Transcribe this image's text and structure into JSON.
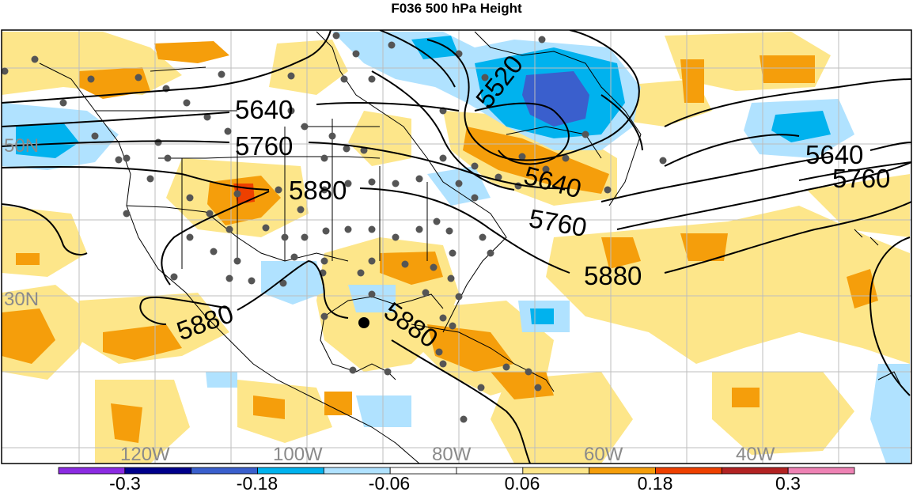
{
  "title": "F036 500 hPa Height",
  "contour_labels": [
    "5520",
    "5640",
    "5760",
    "5880",
    "5640",
    "5760",
    "5640",
    "5760",
    "5880",
    "5880",
    "5880"
  ],
  "lat_labels": [
    "50N",
    "30N"
  ],
  "lon_labels": [
    "120W",
    "100W",
    "80W",
    "60W",
    "40W"
  ],
  "colorbar": {
    "colors": [
      "#8b2be2",
      "#00008b",
      "#3a5fcd",
      "#00b2ee",
      "#b0e2ff",
      "#ffffff",
      "#ffffff",
      "#fde68a",
      "#f59e0b",
      "#ee4000",
      "#b22222",
      "#ee82b4"
    ],
    "tick_labels": [
      "-0.3",
      "-0.18",
      "-0.06",
      "0.06",
      "0.18",
      "0.3"
    ]
  },
  "colors": {
    "cool_light": "#b0e2ff",
    "cool_mid": "#00b2ee",
    "cool_dark": "#3a5fcd",
    "warm_light": "#fde68a",
    "warm_mid": "#f59e0b",
    "warm_dark": "#ee4000"
  }
}
